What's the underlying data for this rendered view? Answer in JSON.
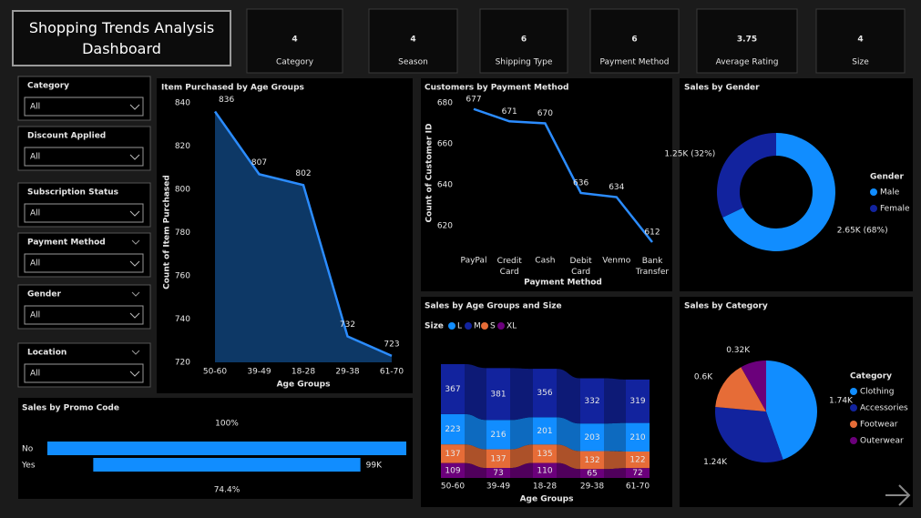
{
  "header": {
    "title": "Shopping Trends Analysis Dashboard"
  },
  "kpis": [
    {
      "value": 4,
      "label": "Category"
    },
    {
      "value": 4,
      "label": "Season"
    },
    {
      "value": 6,
      "label": "Shipping Type"
    },
    {
      "value": 6,
      "label": "Payment Method"
    },
    {
      "value": 3.75,
      "label": "Average Rating"
    },
    {
      "value": 4,
      "label": "Size"
    }
  ],
  "filters": [
    {
      "label": "Category",
      "value": "All"
    },
    {
      "label": "Discount Applied",
      "value": "All"
    },
    {
      "label": "Subscription Status",
      "value": "All"
    },
    {
      "label": "Payment Method",
      "value": "All"
    },
    {
      "label": "Gender",
      "value": "All"
    },
    {
      "label": "Location",
      "value": "All"
    }
  ],
  "chart_data": [
    {
      "type": "area",
      "title": "Item Purchased by Age Groups",
      "x_label": "Age Groups",
      "y_label": "Count of Item Purchased",
      "categories": [
        "50-60",
        "39-49",
        "18-28",
        "29-38",
        "61-70"
      ],
      "values": [
        836,
        807,
        802,
        732,
        723
      ],
      "color": "#2b8cff",
      "fill": "#0d3866",
      "ylim": [
        720,
        840
      ],
      "yticks": [
        720,
        740,
        760,
        780,
        800,
        820,
        840
      ]
    },
    {
      "type": "line",
      "title": "Customers by Payment Method",
      "x_label": "Payment Method",
      "y_label": "Count of Customer ID",
      "categories": [
        "PayPal",
        "Credit Card",
        "Cash",
        "Debit Card",
        "Venmo",
        "Bank Transfer"
      ],
      "values": [
        677,
        671,
        670,
        636,
        634,
        612
      ],
      "color": "#2b8cff",
      "ylim": [
        610,
        682
      ],
      "yticks": [
        620,
        640,
        660,
        680
      ]
    },
    {
      "type": "donut",
      "title": "Sales by Gender",
      "legend_title": "Gender",
      "categories": [
        "Male",
        "Female"
      ],
      "values": [
        2.65,
        1.25
      ],
      "value_labels": [
        "2.65K (68%)",
        "1.25K (32%)"
      ],
      "colors": [
        "#118dff",
        "#12239e"
      ]
    },
    {
      "type": "funnel",
      "title": "Sales by Promo Code",
      "categories": [
        "No",
        "Yes"
      ],
      "values": [
        133,
        99
      ],
      "value_labels": [
        null,
        "99K"
      ],
      "percent_labels": [
        "100%",
        "74.4%"
      ],
      "color": "#118dff"
    },
    {
      "type": "ribbon",
      "title": "Sales by Age Groups and Size",
      "x_label": "Age Groups",
      "legend_title": "Size",
      "categories": [
        "50-60",
        "39-49",
        "18-28",
        "29-38",
        "61-70"
      ],
      "series": [
        {
          "name": "L",
          "color": "#118dff",
          "values": [
            223,
            216,
            201,
            203,
            210
          ]
        },
        {
          "name": "M",
          "color": "#12239e",
          "values": [
            367,
            381,
            356,
            332,
            319
          ]
        },
        {
          "name": "S",
          "color": "#e66c37",
          "values": [
            137,
            137,
            135,
            132,
            122
          ]
        },
        {
          "name": "XL",
          "color": "#6b007b",
          "values": [
            109,
            73,
            110,
            65,
            72
          ]
        }
      ]
    },
    {
      "type": "pie",
      "title": "Sales by Category",
      "legend_title": "Category",
      "categories": [
        "Clothing",
        "Accessories",
        "Footwear",
        "Outerwear"
      ],
      "values": [
        1.74,
        1.24,
        0.6,
        0.32
      ],
      "value_labels": [
        "1.74K",
        "1.24K",
        "0.6K",
        "0.32K"
      ],
      "colors": [
        "#118dff",
        "#12239e",
        "#e66c37",
        "#6b007b"
      ]
    }
  ]
}
